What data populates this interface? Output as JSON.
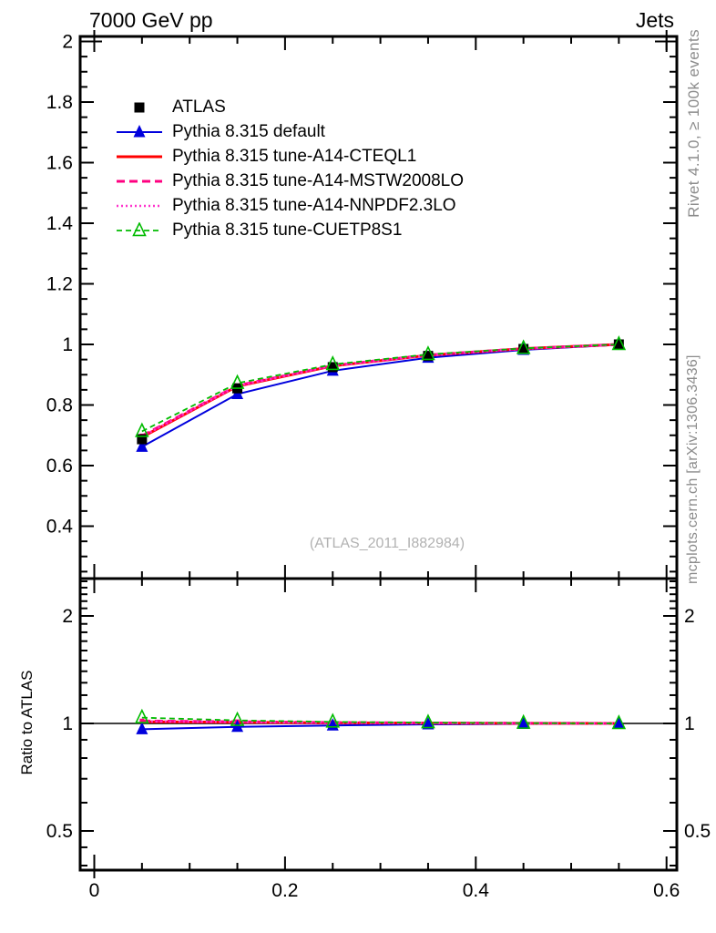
{
  "header": {
    "title_left": "7000 GeV pp",
    "title_right": "Jets"
  },
  "side_notes": {
    "top": "Rivet 4.1.0, ≥ 100k events",
    "bottom": "mcplots.cern.ch [arXiv:1306.3436]"
  },
  "watermark": "(ATLAS_2011_I882984)",
  "ratio_axis_title": "Ratio to ATLAS",
  "colors": {
    "frame": "#000000",
    "gray_text": "#8c8c8c",
    "watermark_gray": "#b2b2b2",
    "atlas": "#000000",
    "pythia_default": "#0000dd",
    "cteql1": "#ff0000",
    "mstw2008lo": "#ff0080",
    "nnpdf23lo": "#ff33cc",
    "cuetp8s1": "#00bb00"
  },
  "chart_data": {
    "type": "line",
    "title": "7000 GeV pp",
    "title_right": "Jets",
    "xlabel": "",
    "ylabel": "",
    "x": [
      0.05,
      0.15,
      0.25,
      0.35,
      0.45,
      0.55
    ],
    "x_axis": {
      "lim": [
        -0.015,
        0.611
      ],
      "major_ticks": [
        0,
        0.2,
        0.4,
        0.6
      ],
      "tick_labels": [
        "0",
        "0.2",
        "0.4",
        "0.6"
      ],
      "minor_step": 0.05
    },
    "main_axis": {
      "scale": "linear",
      "lim": [
        0.227,
        2.017
      ],
      "major_tick_values": [
        0.4,
        0.6,
        0.8,
        1,
        1.2,
        1.4,
        1.6,
        1.8,
        2
      ],
      "tick_labels": [
        "0.4",
        "0.6",
        "0.8",
        "1",
        "1.2",
        "1.4",
        "1.6",
        "1.8",
        "2"
      ],
      "minor_step": 0.05
    },
    "ratio_axis": {
      "scale": "log",
      "lim": [
        0.388,
        2.546
      ],
      "major_tick_values": [
        0.5,
        1,
        2
      ],
      "tick_labels": [
        "0.5",
        "1",
        "2"
      ],
      "minor_tick_values": [
        0.4,
        0.45,
        0.6,
        0.7,
        0.8,
        0.9,
        1.1,
        1.2,
        1.3,
        1.4,
        1.5,
        1.6,
        1.7,
        1.8,
        1.9,
        2.1,
        2.2,
        2.3,
        2.4,
        2.5
      ],
      "reference_line": 1
    },
    "legend_position": "top-left",
    "series": [
      {
        "name": "ATLAS",
        "color": "#000000",
        "line_style": "none",
        "line_width": 0,
        "marker": "square-filled",
        "marker_size": 11,
        "values": [
          0.687,
          0.855,
          0.925,
          0.962,
          0.985,
          1.0
        ],
        "ratio": null
      },
      {
        "name": "Pythia 8.315 default",
        "color": "#0000dd",
        "line_style": "solid",
        "line_width": 2,
        "marker": "triangle-filled",
        "marker_size": 13,
        "values": [
          0.662,
          0.836,
          0.913,
          0.956,
          0.982,
          0.999
        ],
        "ratio": [
          0.963,
          0.978,
          0.987,
          0.994,
          0.997,
          0.999
        ]
      },
      {
        "name": "Pythia 8.315 tune-A14-CTEQL1",
        "color": "#ff0000",
        "line_style": "solid",
        "line_width": 3,
        "marker": "none",
        "marker_size": 0,
        "values": [
          0.694,
          0.862,
          0.929,
          0.964,
          0.986,
          1.0
        ],
        "ratio": [
          1.01,
          1.008,
          1.004,
          1.002,
          1.001,
          1.0
        ]
      },
      {
        "name": "Pythia 8.315 tune-A14-MSTW2008LO",
        "color": "#ff0080",
        "line_style": "dashed",
        "line_width": 3,
        "marker": "square-small",
        "marker_size": 5,
        "values": [
          0.698,
          0.864,
          0.93,
          0.965,
          0.986,
          1.0
        ],
        "ratio": [
          1.016,
          1.011,
          1.006,
          1.003,
          1.001,
          1.0
        ]
      },
      {
        "name": "Pythia 8.315 tune-A14-NNPDF2.3LO",
        "color": "#ff33cc",
        "line_style": "dotted",
        "line_width": 2.5,
        "marker": "none",
        "marker_size": 0,
        "values": [
          0.696,
          0.863,
          0.93,
          0.964,
          0.986,
          1.0
        ],
        "ratio": [
          1.013,
          1.01,
          1.005,
          1.002,
          1.001,
          1.0
        ]
      },
      {
        "name": "Pythia 8.315 tune-CUETP8S1",
        "color": "#00bb00",
        "line_style": "dashed-short",
        "line_width": 1.8,
        "marker": "triangle-open",
        "marker_size": 13,
        "values": [
          0.713,
          0.872,
          0.934,
          0.967,
          0.987,
          1.0
        ],
        "ratio": [
          1.038,
          1.02,
          1.01,
          1.005,
          1.002,
          1.0
        ]
      }
    ]
  }
}
